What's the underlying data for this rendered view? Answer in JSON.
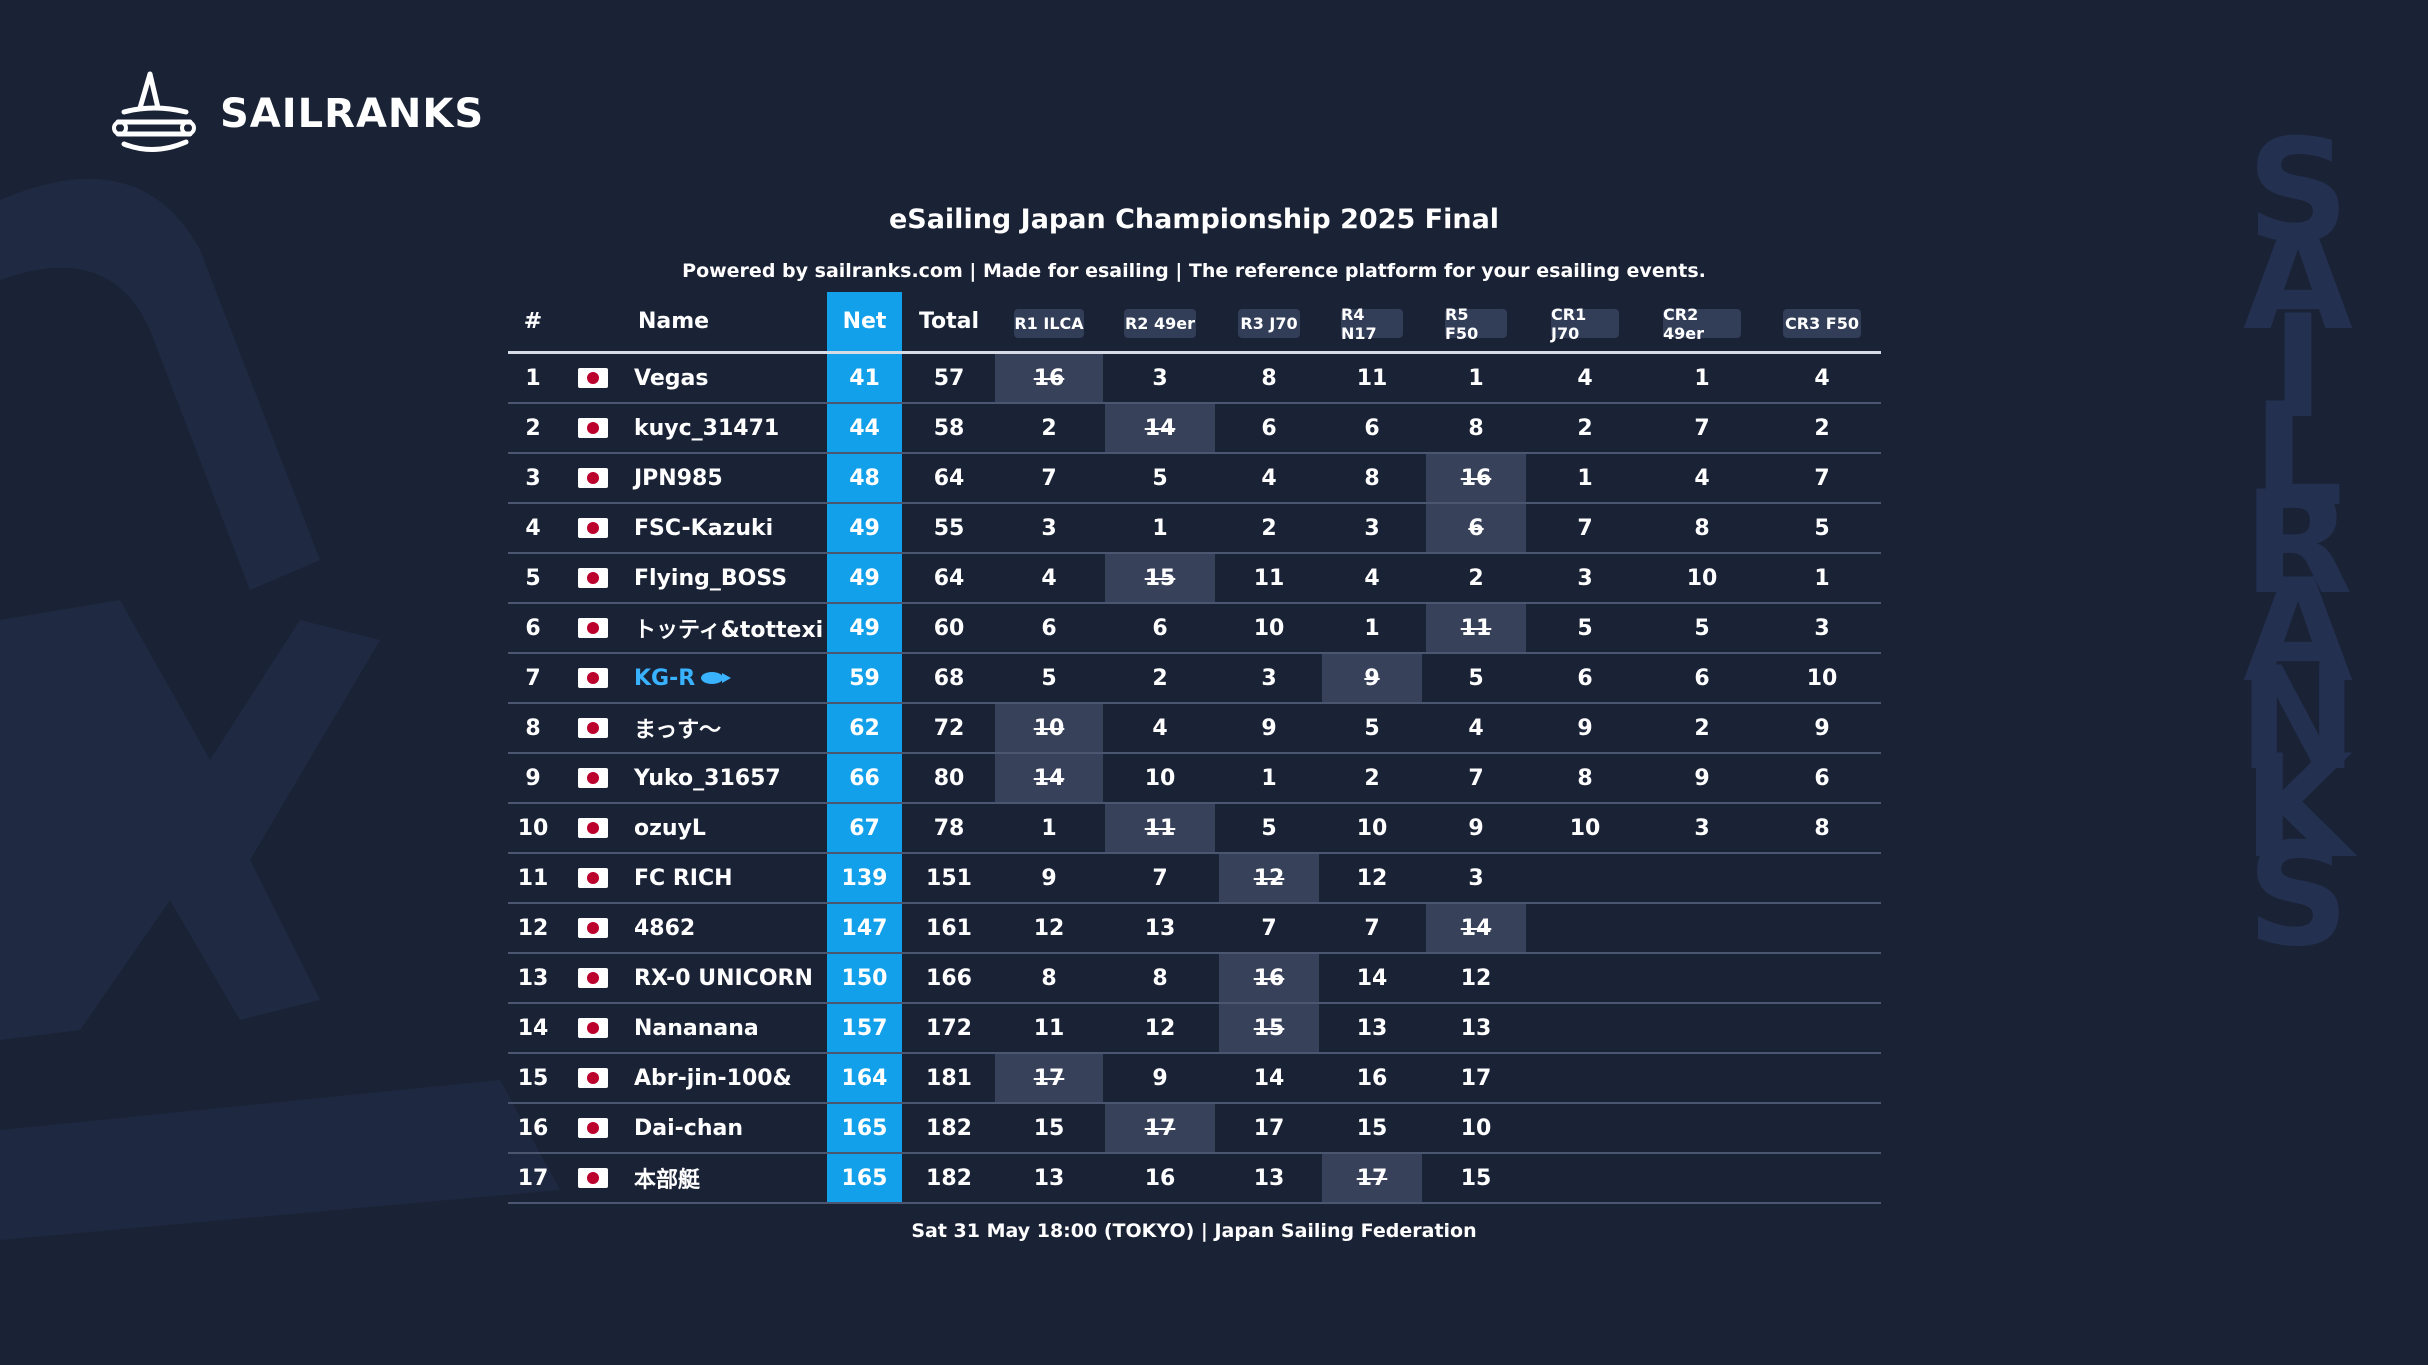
{
  "brand": {
    "name": "SAILRANKS",
    "side_letters": [
      "S",
      "A",
      "I",
      "L",
      "R",
      "A",
      "N",
      "K",
      "S"
    ]
  },
  "event": {
    "title": "eSailing Japan Championship 2025 Final",
    "subtitle": "Powered by sailranks.com | Made for esailing | The reference platform for your esailing events.",
    "footer": "Sat 31 May 18:00 (TOKYO) | Japan Sailing Federation"
  },
  "colors": {
    "background": "#1a2236",
    "net_column": "#12a0ea",
    "highlight": "#39b3ff",
    "discard": "#38415a"
  },
  "table": {
    "headers": {
      "rank": "#",
      "name": "Name",
      "net": "Net",
      "total": "Total"
    },
    "races": [
      "R1 ILCA",
      "R2 49er",
      "R3 J70",
      "R4 N17",
      "R5 F50",
      "CR1 J70",
      "CR2 49er",
      "CR3 F50"
    ],
    "rows": [
      {
        "rank": "1",
        "name": "Vegas",
        "net": "41",
        "total": "57",
        "scores": [
          "16",
          "3",
          "8",
          "11",
          "1",
          "4",
          "1",
          "4"
        ],
        "drop": 0
      },
      {
        "rank": "2",
        "name": "kuyc_31471",
        "net": "44",
        "total": "58",
        "scores": [
          "2",
          "14",
          "6",
          "6",
          "8",
          "2",
          "7",
          "2"
        ],
        "drop": 1
      },
      {
        "rank": "3",
        "name": "JPN985",
        "net": "48",
        "total": "64",
        "scores": [
          "7",
          "5",
          "4",
          "8",
          "16",
          "1",
          "4",
          "7"
        ],
        "drop": 4
      },
      {
        "rank": "4",
        "name": "FSC-Kazuki",
        "net": "49",
        "total": "55",
        "scores": [
          "3",
          "1",
          "2",
          "3",
          "6",
          "7",
          "8",
          "5"
        ],
        "drop": 4
      },
      {
        "rank": "5",
        "name": "Flying_BOSS",
        "net": "49",
        "total": "64",
        "scores": [
          "4",
          "15",
          "11",
          "4",
          "2",
          "3",
          "10",
          "1"
        ],
        "drop": 1
      },
      {
        "rank": "6",
        "name": "トッティ&tottexi",
        "net": "49",
        "total": "60",
        "scores": [
          "6",
          "6",
          "10",
          "1",
          "11",
          "5",
          "5",
          "3"
        ],
        "drop": 4
      },
      {
        "rank": "7",
        "name": "KG-R",
        "net": "59",
        "total": "68",
        "scores": [
          "5",
          "2",
          "3",
          "9",
          "5",
          "6",
          "6",
          "10"
        ],
        "drop": 3,
        "highlight": true
      },
      {
        "rank": "8",
        "name": "まっす〜",
        "net": "62",
        "total": "72",
        "scores": [
          "10",
          "4",
          "9",
          "5",
          "4",
          "9",
          "2",
          "9"
        ],
        "drop": 0
      },
      {
        "rank": "9",
        "name": "Yuko_31657",
        "net": "66",
        "total": "80",
        "scores": [
          "14",
          "10",
          "1",
          "2",
          "7",
          "8",
          "9",
          "6"
        ],
        "drop": 0
      },
      {
        "rank": "10",
        "name": "ozuyL",
        "net": "67",
        "total": "78",
        "scores": [
          "1",
          "11",
          "5",
          "10",
          "9",
          "10",
          "3",
          "8"
        ],
        "drop": 1
      },
      {
        "rank": "11",
        "name": "FC RICH",
        "net": "139",
        "total": "151",
        "scores": [
          "9",
          "7",
          "12",
          "12",
          "3"
        ],
        "drop": 2
      },
      {
        "rank": "12",
        "name": "4862",
        "net": "147",
        "total": "161",
        "scores": [
          "12",
          "13",
          "7",
          "7",
          "14"
        ],
        "drop": 4
      },
      {
        "rank": "13",
        "name": "RX-0 UNICORN",
        "net": "150",
        "total": "166",
        "scores": [
          "8",
          "8",
          "16",
          "14",
          "12"
        ],
        "drop": 2
      },
      {
        "rank": "14",
        "name": "Nananana",
        "net": "157",
        "total": "172",
        "scores": [
          "11",
          "12",
          "15",
          "13",
          "13"
        ],
        "drop": 2
      },
      {
        "rank": "15",
        "name": "Abr-jin-100&",
        "net": "164",
        "total": "181",
        "scores": [
          "17",
          "9",
          "14",
          "16",
          "17"
        ],
        "drop": 0
      },
      {
        "rank": "16",
        "name": "Dai-chan",
        "net": "165",
        "total": "182",
        "scores": [
          "15",
          "17",
          "17",
          "15",
          "10"
        ],
        "drop": 1
      },
      {
        "rank": "17",
        "name": "本部艇",
        "net": "165",
        "total": "182",
        "scores": [
          "13",
          "16",
          "13",
          "17",
          "15"
        ],
        "drop": 3
      }
    ]
  }
}
